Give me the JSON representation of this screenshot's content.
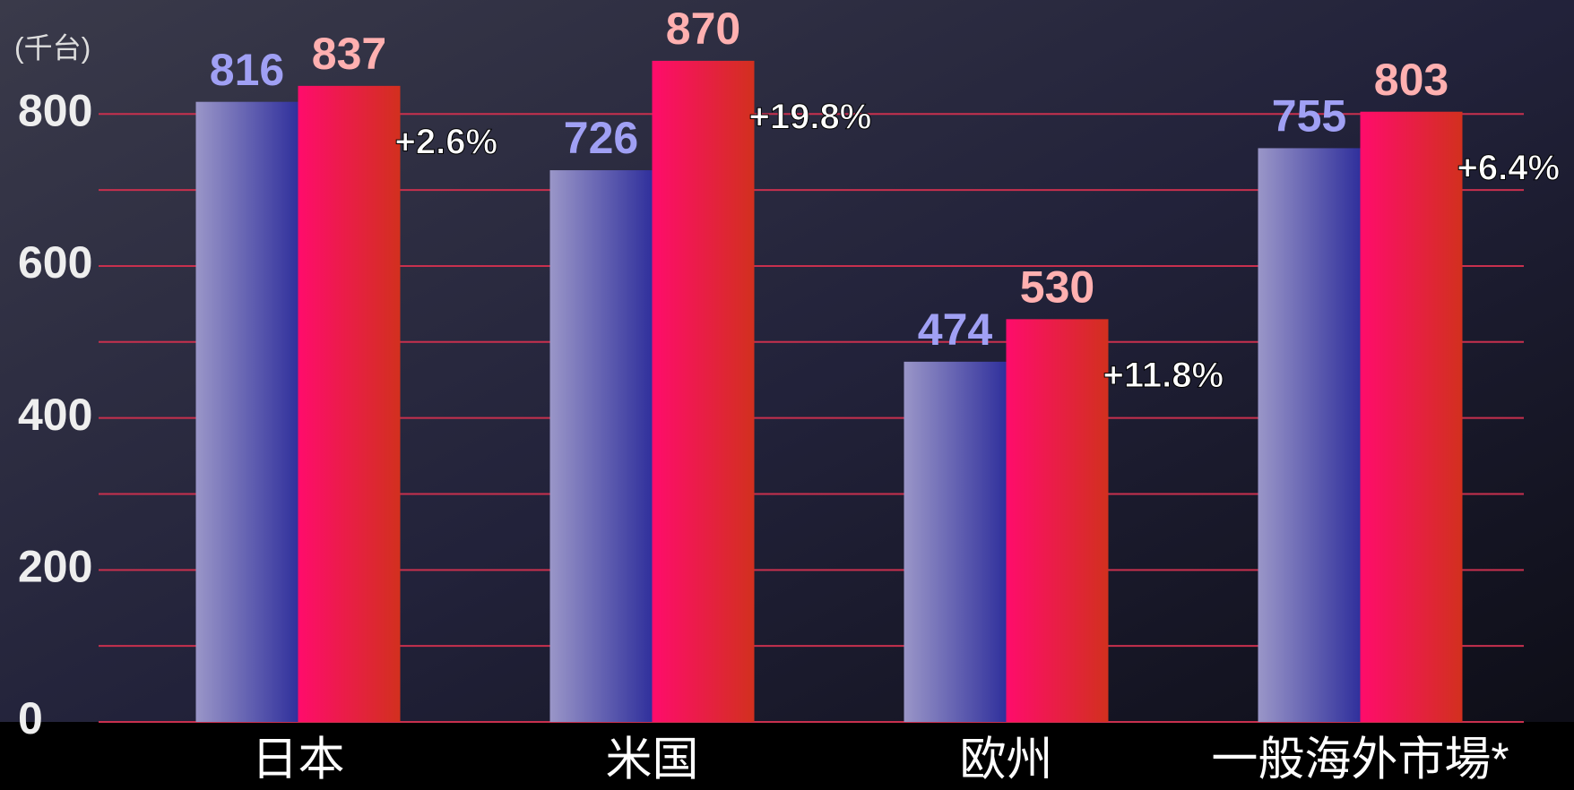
{
  "chart_data": {
    "type": "bar",
    "unit_label": "(千台)",
    "categories": [
      "日本",
      "米国",
      "欧州",
      "一般海外市場*"
    ],
    "series": [
      {
        "color": [
          "#9a96c8",
          "#30309c"
        ],
        "label_color": "#a0a0f4",
        "values": [
          816,
          726,
          474,
          755
        ]
      },
      {
        "color": [
          "#ff0c6c",
          "#d2301e"
        ],
        "label_color": "#ffb0b0",
        "values": [
          837,
          870,
          530,
          803
        ]
      }
    ],
    "annotations": [
      "+2.6%",
      "+19.8%",
      "+11.8%",
      "+6.4%"
    ],
    "ylim": [
      0,
      950
    ],
    "yticks": [
      0,
      200,
      400,
      600,
      800
    ],
    "minor_yticks": [
      100,
      300,
      500,
      700
    ],
    "grid": true,
    "grid_color": "#c8304e"
  }
}
